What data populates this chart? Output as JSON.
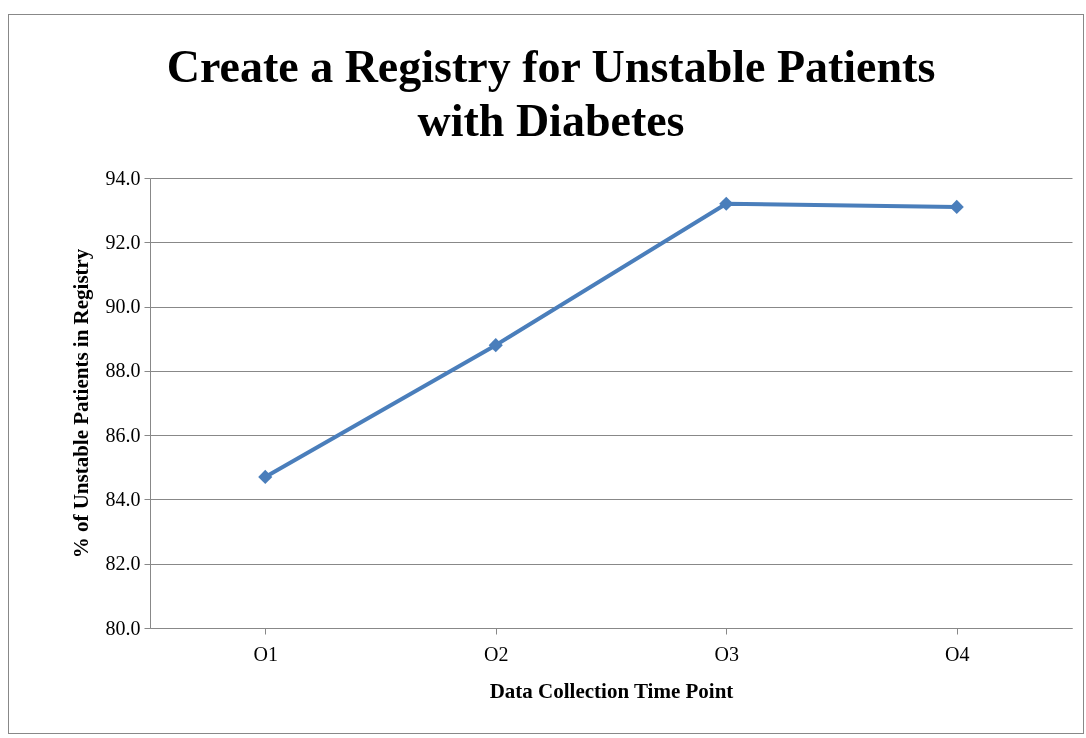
{
  "chart_data": {
    "type": "line",
    "title": "Create a Registry for Unstable Patients with Diabetes",
    "xlabel": "Data Collection Time Point",
    "ylabel": "% of Unstable Patients in Registry",
    "categories": [
      "O1",
      "O2",
      "O3",
      "O4"
    ],
    "series": [
      {
        "color": "#4a7ebb",
        "values": [
          84.7,
          88.8,
          93.2,
          93.1
        ]
      }
    ],
    "ylim": [
      80,
      94
    ],
    "yticks": [
      {
        "value": 80,
        "label": "80.0"
      },
      {
        "value": 82,
        "label": "82.0"
      },
      {
        "value": 84,
        "label": "84.0"
      },
      {
        "value": 86,
        "label": "86.0"
      },
      {
        "value": 88,
        "label": "88.0"
      },
      {
        "value": 90,
        "label": "90.0"
      },
      {
        "value": 92,
        "label": "92.0"
      },
      {
        "value": 94,
        "label": "94.0"
      }
    ],
    "grid": "y",
    "marker": "diamond",
    "line_style": "solid"
  }
}
